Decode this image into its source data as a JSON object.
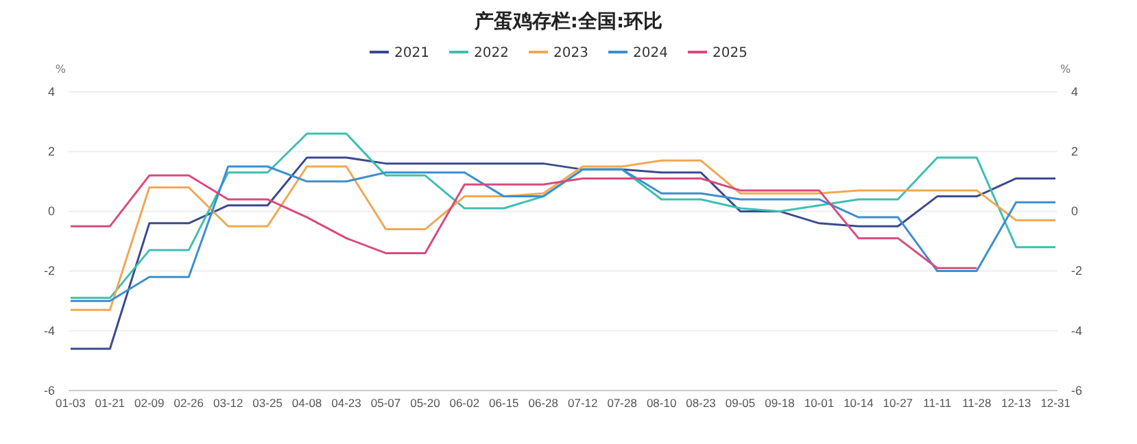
{
  "chart_data": {
    "type": "line",
    "title": "产蛋鸡存栏:全国:环比",
    "ylabel": "%",
    "y2label": "%",
    "categories": [
      "01-03",
      "01-21",
      "02-09",
      "02-26",
      "03-12",
      "03-25",
      "04-08",
      "04-23",
      "05-07",
      "05-20",
      "06-02",
      "06-15",
      "06-28",
      "07-12",
      "07-28",
      "08-10",
      "08-23",
      "09-05",
      "09-18",
      "10-01",
      "10-14",
      "10-27",
      "11-11",
      "11-28",
      "12-13",
      "12-31"
    ],
    "ylim": [
      -6,
      4
    ],
    "yticks": [
      -6,
      -4,
      -2,
      0,
      2,
      4
    ],
    "y2lim": [
      -6,
      4
    ],
    "y2ticks": [
      -6,
      -4,
      -2,
      0,
      2,
      4
    ],
    "grid": "y",
    "legend": "top",
    "marker": "none",
    "line_style": "solid",
    "series": [
      {
        "name": "2021",
        "color": "#3b4a8f",
        "values": [
          -4.6,
          -4.6,
          -0.4,
          -0.4,
          0.2,
          0.2,
          1.8,
          1.8,
          1.6,
          1.6,
          1.6,
          1.6,
          1.6,
          1.4,
          1.4,
          1.3,
          1.3,
          0,
          0,
          -0.4,
          -0.5,
          -0.5,
          0.5,
          0.5,
          1.1,
          1.1
        ]
      },
      {
        "name": "2022",
        "color": "#3dbfb0",
        "values": [
          -2.9,
          -2.9,
          -1.3,
          -1.3,
          1.3,
          1.3,
          2.6,
          2.6,
          1.2,
          1.2,
          0.1,
          0.1,
          0.5,
          1.4,
          1.4,
          0.4,
          0.4,
          0.1,
          0,
          0.2,
          0.4,
          0.4,
          1.8,
          1.8,
          -1.2,
          -1.2
        ]
      },
      {
        "name": "2023",
        "color": "#f0a853",
        "values": [
          -3.3,
          -3.3,
          0.8,
          0.8,
          -0.5,
          -0.5,
          1.5,
          1.5,
          -0.6,
          -0.6,
          0.5,
          0.5,
          0.6,
          1.5,
          1.5,
          1.7,
          1.7,
          0.6,
          0.6,
          0.6,
          0.7,
          0.7,
          0.7,
          0.7,
          -0.3,
          -0.3
        ]
      },
      {
        "name": "2024",
        "color": "#3b8fcf",
        "values": [
          -3,
          -3,
          -2.2,
          -2.2,
          1.5,
          1.5,
          1,
          1,
          1.3,
          1.3,
          1.3,
          0.5,
          0.5,
          1.4,
          1.4,
          0.6,
          0.6,
          0.4,
          0.4,
          0.4,
          -0.2,
          -0.2,
          -2,
          -2,
          0.3,
          0.3
        ]
      },
      {
        "name": "2025",
        "color": "#d94a7e",
        "values": [
          -0.5,
          -0.5,
          1.2,
          1.2,
          0.4,
          0.4,
          -0.2,
          -0.9,
          -1.4,
          -1.4,
          0.9,
          0.9,
          0.9,
          1.1,
          1.1,
          1.1,
          1.1,
          0.7,
          0.7,
          0.7,
          -0.9,
          -0.9,
          -1.9,
          -1.9,
          null,
          null
        ]
      }
    ]
  }
}
